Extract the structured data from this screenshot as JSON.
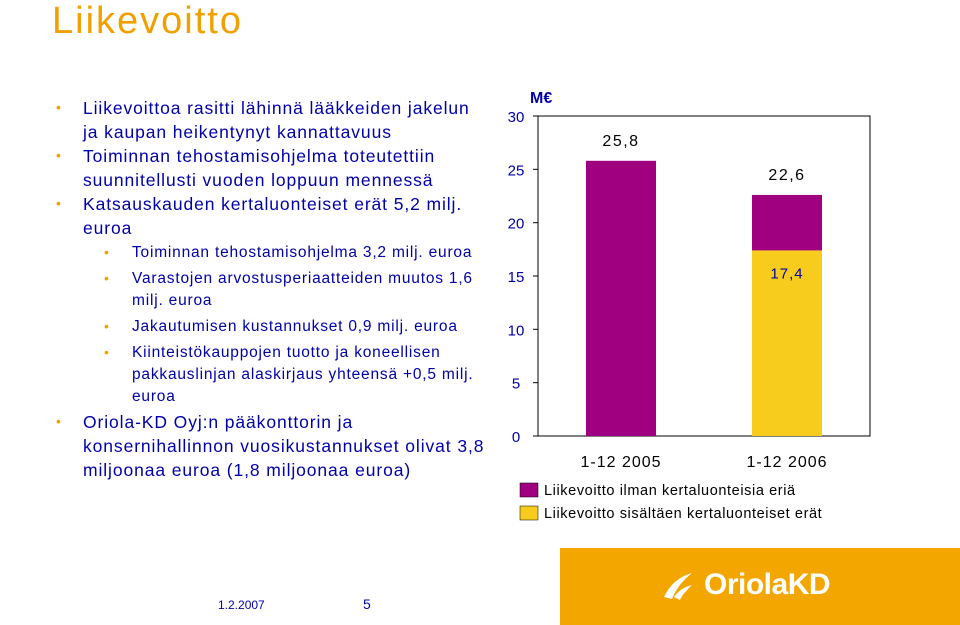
{
  "slide": {
    "title": "Liikevoitto",
    "bullets": [
      {
        "level": 1,
        "text": "Liikevoittoa rasitti lähinnä lääkkeiden jakelun ja kaupan heikentynyt kannattavuus"
      },
      {
        "level": 1,
        "text": "Toiminnan tehostamisohjelma toteutettiin suunnitellusti vuoden loppuun mennessä"
      },
      {
        "level": 1,
        "text": "Katsauskauden kertaluonteiset erät 5,2 milj. euroa"
      },
      {
        "level": 2,
        "text": "Toiminnan tehostamisohjelma 3,2 milj. euroa"
      },
      {
        "level": 2,
        "text": "Varastojen arvostusperiaatteiden muutos 1,6 milj. euroa"
      },
      {
        "level": 2,
        "text": "Jakautumisen kustannukset 0,9 milj. euroa"
      },
      {
        "level": 2,
        "text": "Kiinteistökauppojen tuotto ja koneellisen pakkauslinjan alaskirjaus yhteensä +0,5 milj. euroa"
      },
      {
        "level": 1,
        "text": "Oriola-KD Oyj:n pääkonttorin ja konsernihallinnon vuosikustannukset olivat 3,8 miljoonaa euroa (1,8 miljoonaa euroa)"
      }
    ],
    "footer": {
      "date": "1.2.2007",
      "page": "5"
    },
    "logo_text": "OriolaKD"
  },
  "chart_data": {
    "type": "bar",
    "stacked": true,
    "unit_label": "M€",
    "categories": [
      "1-12 2005",
      "1-12 2006"
    ],
    "series": [
      {
        "name": "Liikevoitto sisältäen kertaluonteiset erät",
        "color": "#f8cc1c",
        "values": [
          0,
          17.4
        ],
        "labels": [
          "",
          "17,4"
        ]
      },
      {
        "name": "Liikevoitto ilman kertaluonteisia eriä",
        "color": "#a0007f",
        "values": [
          25.8,
          5.2
        ],
        "totals": [
          "25,8",
          "22,6"
        ]
      }
    ],
    "ylim": [
      0,
      30
    ],
    "yticks": [
      0,
      5,
      10,
      15,
      20,
      25,
      30
    ],
    "legend": [
      {
        "label": "Liikevoitto ilman kertaluonteisia eriä",
        "color": "#a0007f"
      },
      {
        "label": "Liikevoitto sisältäen kertaluonteiset erät",
        "color": "#f8cc1c"
      }
    ],
    "legend_position": "bottom",
    "grid": false
  },
  "colors": {
    "title": "#f0a000",
    "text": "#0000a8",
    "bullet": "#f0a000",
    "logo_bg": "#f4a600"
  }
}
